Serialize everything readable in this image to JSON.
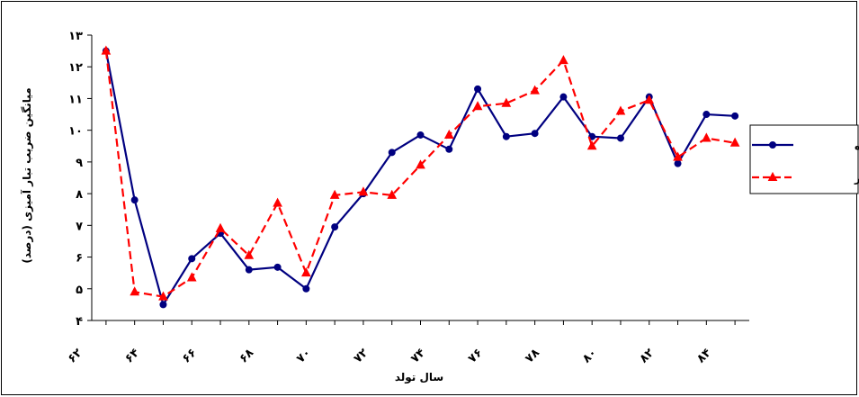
{
  "chart_data": {
    "type": "line",
    "title": "",
    "xlabel": "سال تولد",
    "ylabel": "میانگین ضریب تبار آمیزی (درصد)",
    "x": [
      63,
      64,
      65,
      66,
      67,
      68,
      69,
      70,
      71,
      72,
      73,
      74,
      75,
      76,
      77,
      78,
      79,
      80,
      81,
      82,
      83,
      84,
      85
    ],
    "x_tick_values": [
      62,
      64,
      66,
      68,
      70,
      72,
      74,
      76,
      78,
      80,
      82,
      84
    ],
    "x_tick_labels": [
      "۶۲",
      "۶۴",
      "۶۶",
      "۶۸",
      "۷۰",
      "۷۲",
      "۷۴",
      "۷۶",
      "۷۸",
      "۸۰",
      "۸۲",
      "۸۴"
    ],
    "xlim": [
      62.5,
      85.5
    ],
    "ylim": [
      4,
      13
    ],
    "y_tick_values": [
      4,
      5,
      6,
      7,
      8,
      9,
      10,
      11,
      12,
      13
    ],
    "y_tick_labels": [
      "۴",
      "۵",
      "۶",
      "۷",
      "۸",
      "۹",
      "۱۰",
      "۱۱",
      "۱۲",
      "۱۳"
    ],
    "grid": false,
    "legend_position": "right",
    "series": [
      {
        "name": "ماده",
        "color": "#000080",
        "marker": "circle",
        "line_style": "solid",
        "values": [
          12.5,
          7.8,
          4.5,
          5.95,
          6.75,
          5.6,
          5.68,
          5.0,
          6.95,
          8.0,
          9.3,
          9.85,
          9.4,
          11.3,
          9.8,
          9.9,
          11.05,
          9.8,
          9.75,
          11.05,
          8.95,
          10.5,
          10.45
        ]
      },
      {
        "name": "نر",
        "color": "#ff0000",
        "marker": "triangle",
        "line_style": "dashed",
        "values": [
          12.5,
          4.9,
          4.75,
          5.35,
          6.9,
          6.05,
          7.7,
          5.5,
          7.95,
          8.05,
          7.95,
          8.9,
          9.85,
          10.75,
          10.85,
          11.25,
          12.2,
          9.5,
          10.6,
          10.95,
          9.15,
          9.75,
          9.6
        ]
      }
    ]
  }
}
